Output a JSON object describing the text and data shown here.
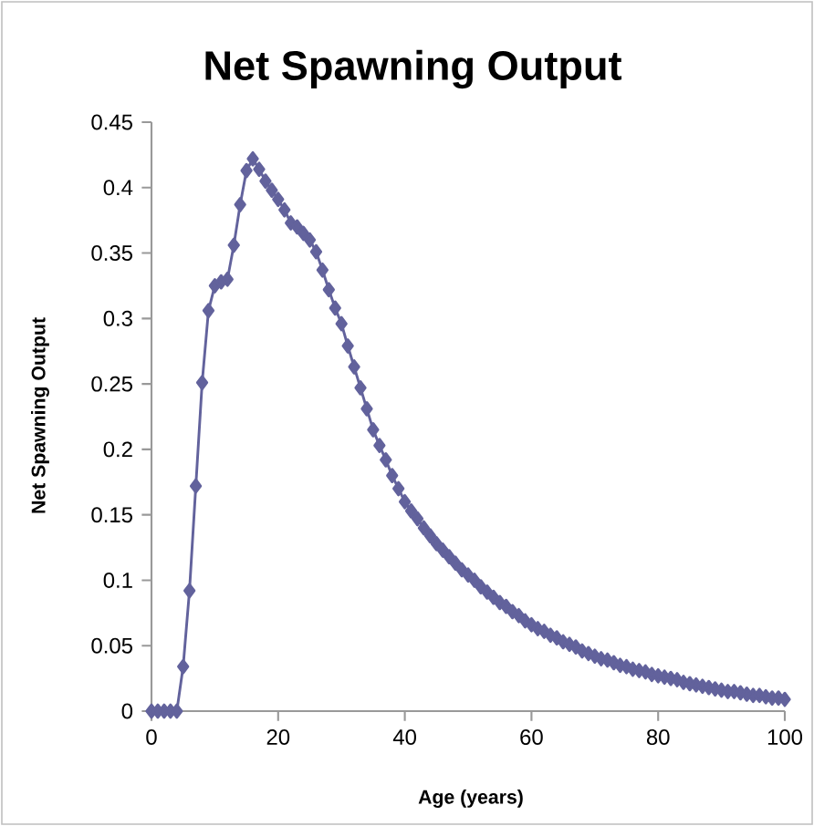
{
  "chart_data": {
    "type": "line",
    "title": "Net Spawning Output",
    "xlabel": "Age (years)",
    "ylabel": "Net Spawning Output",
    "x": [
      0,
      1,
      2,
      3,
      4,
      5,
      6,
      7,
      8,
      9,
      10,
      11,
      12,
      13,
      14,
      15,
      16,
      17,
      18,
      19,
      20,
      21,
      22,
      23,
      24,
      25,
      26,
      27,
      28,
      29,
      30,
      31,
      32,
      33,
      34,
      35,
      36,
      37,
      38,
      39,
      40,
      41,
      42,
      43,
      44,
      45,
      46,
      47,
      48,
      49,
      50,
      51,
      52,
      53,
      54,
      55,
      56,
      57,
      58,
      59,
      60,
      61,
      62,
      63,
      64,
      65,
      66,
      67,
      68,
      69,
      70,
      71,
      72,
      73,
      74,
      75,
      76,
      77,
      78,
      79,
      80,
      81,
      82,
      83,
      84,
      85,
      86,
      87,
      88,
      89,
      90,
      91,
      92,
      93,
      94,
      95,
      96,
      97,
      98,
      99,
      100
    ],
    "series": [
      {
        "color": "#62629c",
        "values": [
          0,
          0,
          0,
          0,
          0,
          0.034,
          0.092,
          0.172,
          0.251,
          0.306,
          0.325,
          0.328,
          0.33,
          0.356,
          0.387,
          0.413,
          0.422,
          0.414,
          0.405,
          0.398,
          0.391,
          0.383,
          0.373,
          0.37,
          0.365,
          0.36,
          0.351,
          0.337,
          0.322,
          0.308,
          0.296,
          0.279,
          0.263,
          0.247,
          0.231,
          0.215,
          0.203,
          0.192,
          0.18,
          0.17,
          0.16,
          0.153,
          0.147,
          0.14,
          0.134,
          0.128,
          0.123,
          0.118,
          0.113,
          0.108,
          0.104,
          0.1,
          0.095,
          0.091,
          0.087,
          0.083,
          0.08,
          0.076,
          0.073,
          0.069,
          0.066,
          0.063,
          0.061,
          0.058,
          0.056,
          0.053,
          0.051,
          0.049,
          0.046,
          0.044,
          0.042,
          0.04,
          0.039,
          0.037,
          0.035,
          0.034,
          0.032,
          0.031,
          0.03,
          0.028,
          0.027,
          0.026,
          0.025,
          0.024,
          0.022,
          0.021,
          0.02,
          0.019,
          0.018,
          0.017,
          0.016,
          0.015,
          0.015,
          0.014,
          0.013,
          0.012,
          0.012,
          0.011,
          0.01,
          0.01,
          0.009
        ]
      }
    ],
    "xlim": [
      0,
      100
    ],
    "xticks": [
      0,
      20,
      40,
      60,
      80,
      100
    ],
    "ylim": [
      0,
      0.45
    ],
    "yticks": [
      0,
      0.05,
      0.1,
      0.15,
      0.2,
      0.25,
      0.3,
      0.35,
      0.4,
      0.45
    ],
    "marker": "diamond",
    "line_style": "solid"
  }
}
